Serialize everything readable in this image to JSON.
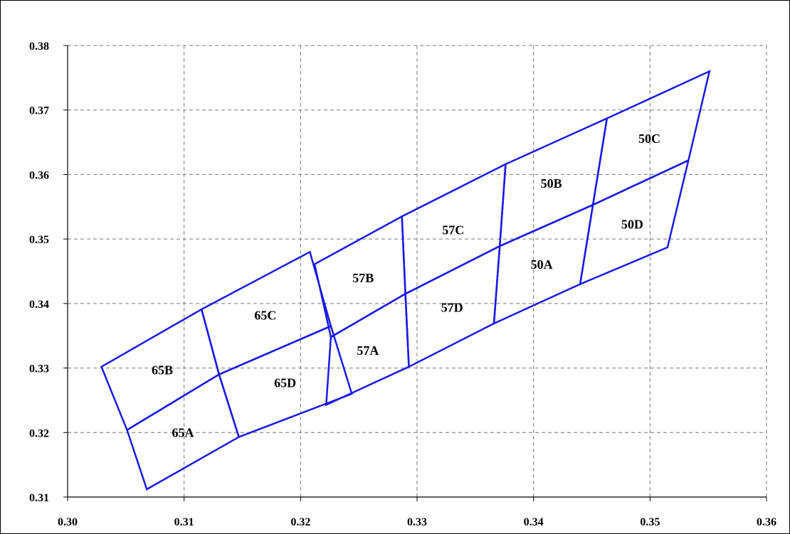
{
  "chart_data": {
    "type": "scatter",
    "title": "",
    "xlabel": "",
    "ylabel": "",
    "xlim": [
      0.3,
      0.36
    ],
    "ylim": [
      0.31,
      0.38
    ],
    "grid": true,
    "grid_style": "dashed",
    "line_color": "#1a1ae6",
    "x_ticks": [
      "0.30",
      "0.31",
      "0.32",
      "0.33",
      "0.34",
      "0.35",
      "0.36"
    ],
    "y_ticks": [
      "0.31",
      "0.32",
      "0.33",
      "0.34",
      "0.35",
      "0.36",
      "0.37",
      "0.38"
    ],
    "regions": [
      {
        "name": "65A",
        "vertices": [
          [
            0.3051,
            0.3204
          ],
          [
            0.313,
            0.329
          ],
          [
            0.3147,
            0.3193
          ],
          [
            0.3068,
            0.3112
          ]
        ]
      },
      {
        "name": "65B",
        "vertices": [
          [
            0.3029,
            0.3302
          ],
          [
            0.3115,
            0.3391
          ],
          [
            0.313,
            0.329
          ],
          [
            0.3051,
            0.3204
          ]
        ]
      },
      {
        "name": "65C",
        "vertices": [
          [
            0.3115,
            0.3391
          ],
          [
            0.3208,
            0.348
          ],
          [
            0.3226,
            0.3365
          ],
          [
            0.313,
            0.329
          ]
        ]
      },
      {
        "name": "65D",
        "vertices": [
          [
            0.313,
            0.329
          ],
          [
            0.3226,
            0.3365
          ],
          [
            0.3244,
            0.326
          ],
          [
            0.3147,
            0.3193
          ]
        ]
      },
      {
        "name": "57A",
        "vertices": [
          [
            0.3226,
            0.3348
          ],
          [
            0.329,
            0.3415
          ],
          [
            0.3293,
            0.3302
          ],
          [
            0.3222,
            0.3243
          ]
        ]
      },
      {
        "name": "57B",
        "vertices": [
          [
            0.3212,
            0.3461
          ],
          [
            0.3287,
            0.3535
          ],
          [
            0.329,
            0.3415
          ],
          [
            0.3226,
            0.3348
          ]
        ]
      },
      {
        "name": "57C",
        "vertices": [
          [
            0.3287,
            0.3535
          ],
          [
            0.3376,
            0.3616
          ],
          [
            0.3371,
            0.3489
          ],
          [
            0.329,
            0.3415
          ]
        ]
      },
      {
        "name": "57D",
        "vertices": [
          [
            0.329,
            0.3415
          ],
          [
            0.3371,
            0.3489
          ],
          [
            0.3366,
            0.3369
          ],
          [
            0.3293,
            0.3302
          ]
        ]
      },
      {
        "name": "50A",
        "vertices": [
          [
            0.3371,
            0.3489
          ],
          [
            0.3451,
            0.3553
          ],
          [
            0.344,
            0.343
          ],
          [
            0.3366,
            0.3369
          ]
        ]
      },
      {
        "name": "50B",
        "vertices": [
          [
            0.3376,
            0.3616
          ],
          [
            0.3463,
            0.3687
          ],
          [
            0.3451,
            0.3553
          ],
          [
            0.3371,
            0.3489
          ]
        ]
      },
      {
        "name": "50C",
        "vertices": [
          [
            0.3463,
            0.3687
          ],
          [
            0.3551,
            0.376
          ],
          [
            0.3533,
            0.3622
          ],
          [
            0.3451,
            0.3553
          ]
        ]
      },
      {
        "name": "50D",
        "vertices": [
          [
            0.3451,
            0.3553
          ],
          [
            0.3533,
            0.3622
          ],
          [
            0.3515,
            0.3487
          ],
          [
            0.344,
            0.343
          ]
        ]
      }
    ]
  }
}
